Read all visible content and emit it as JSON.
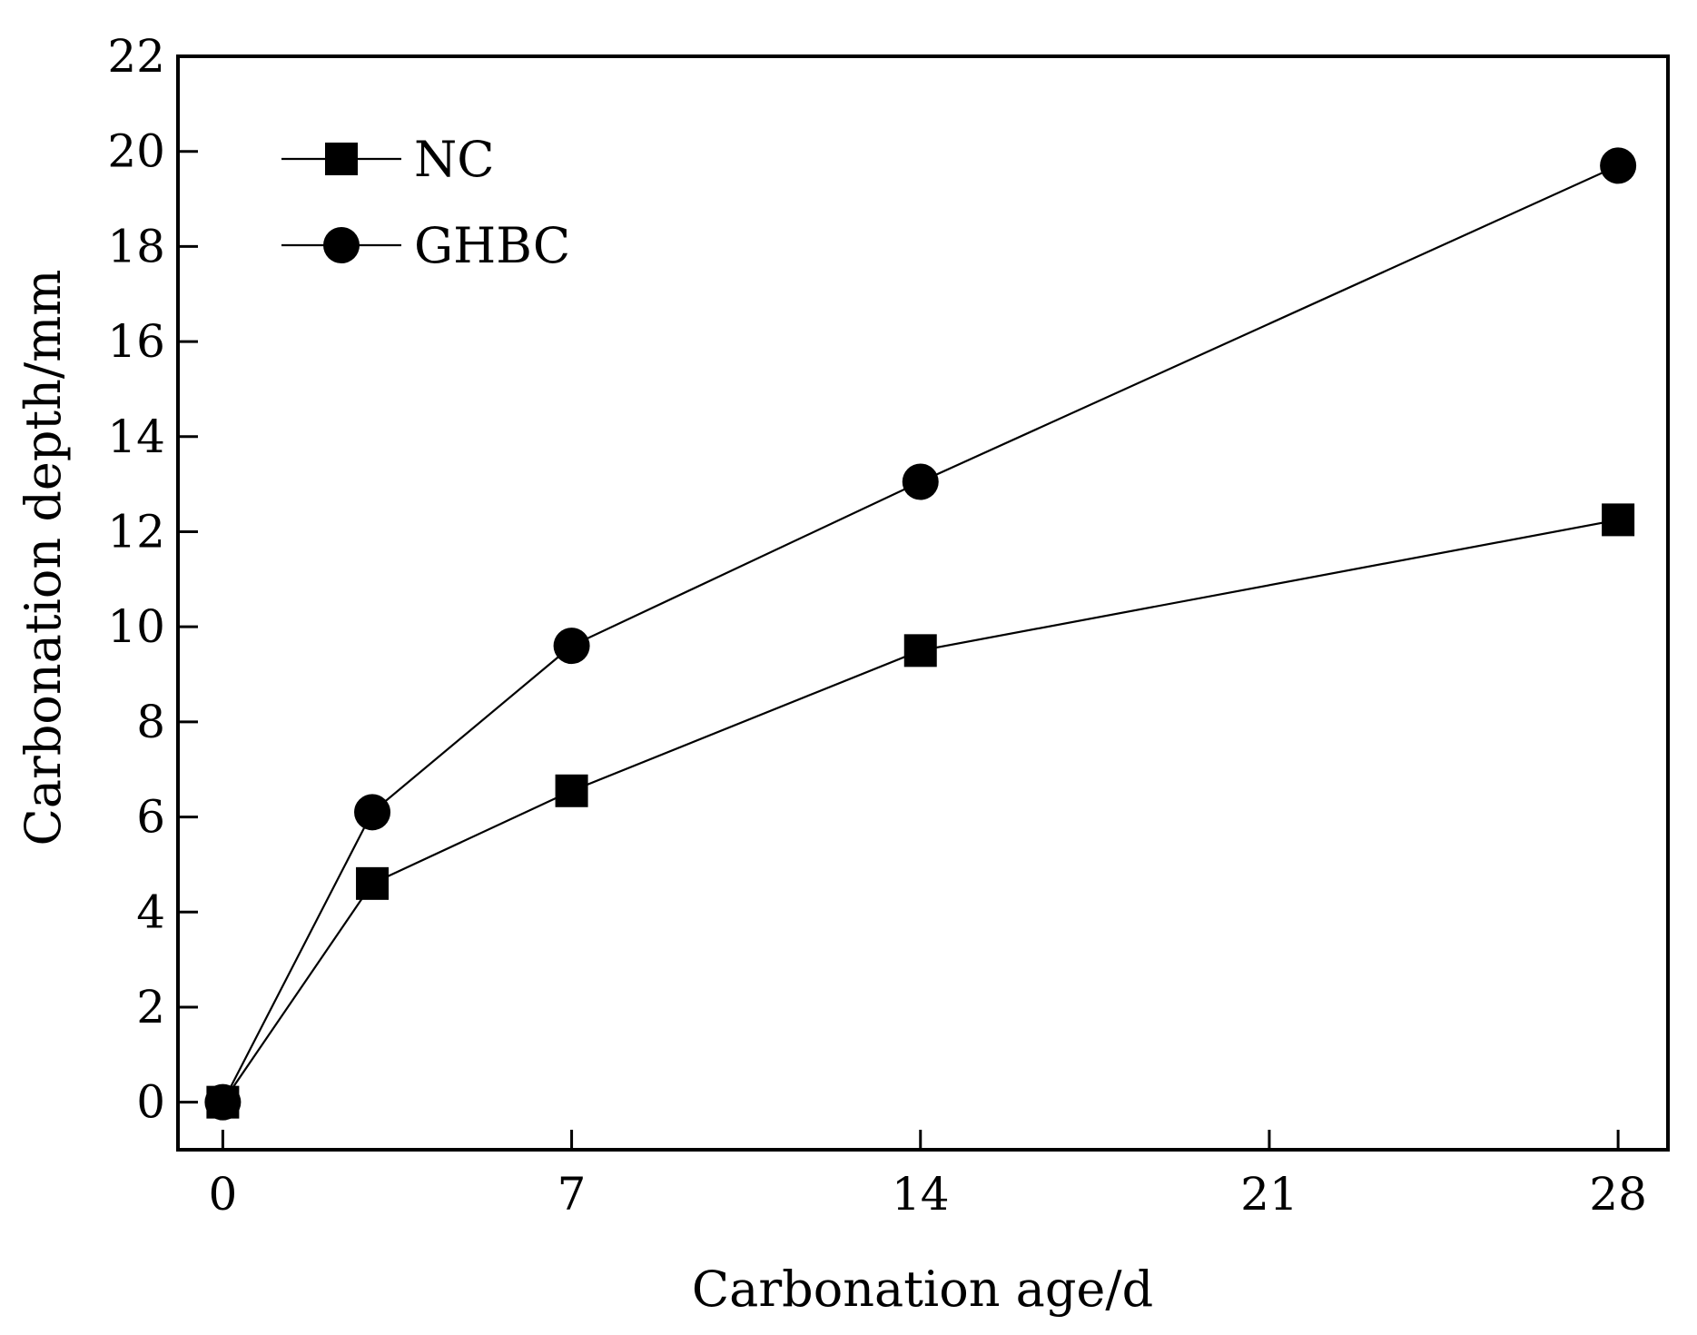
{
  "chart_data": {
    "type": "line",
    "title": "",
    "xlabel": "Carbonation age/d",
    "ylabel": "Carbonation depth/mm",
    "xlim": [
      -0.9,
      29
    ],
    "ylim": [
      -1,
      22
    ],
    "xticks": [
      0,
      7,
      14,
      21,
      28
    ],
    "yticks": [
      0,
      2,
      4,
      6,
      8,
      10,
      12,
      14,
      16,
      18,
      20,
      22
    ],
    "legend_position": "top-left",
    "grid": false,
    "series": [
      {
        "name": "NC",
        "marker": "square",
        "color": "#000000",
        "x": [
          0,
          3,
          7,
          14,
          28
        ],
        "y": [
          0,
          4.6,
          6.55,
          9.5,
          12.25
        ]
      },
      {
        "name": "GHBC",
        "marker": "circle",
        "color": "#000000",
        "x": [
          0,
          3,
          7,
          14,
          28
        ],
        "y": [
          0,
          6.1,
          9.6,
          13.05,
          19.7
        ]
      }
    ]
  }
}
